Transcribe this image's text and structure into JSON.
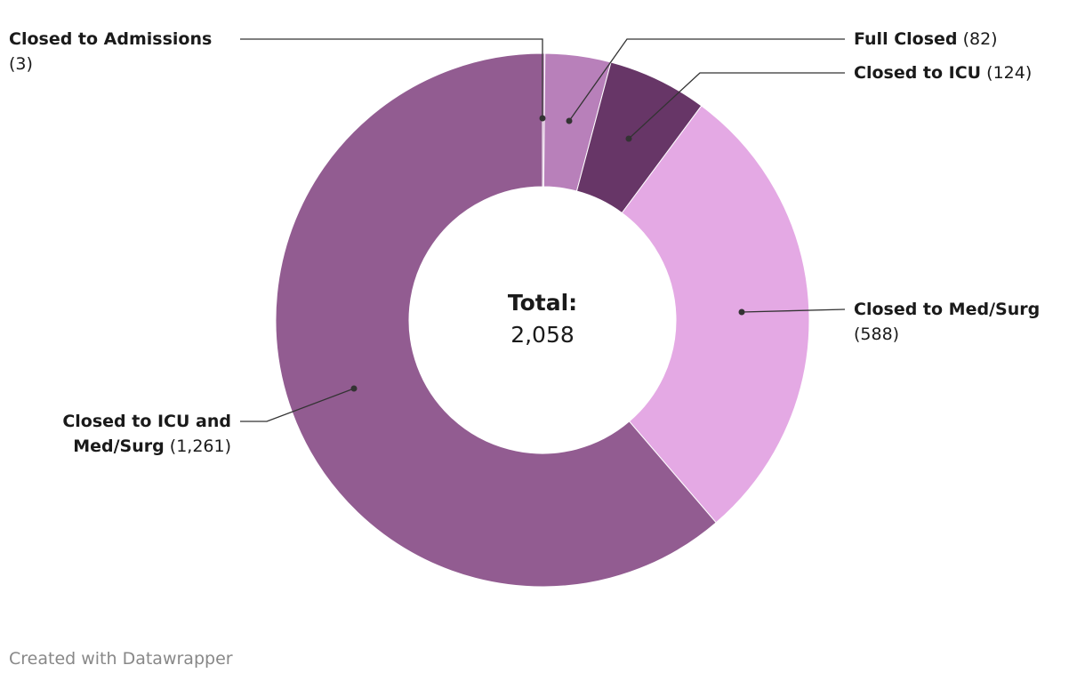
{
  "chart_data": {
    "type": "donut",
    "categories": [
      "Closed to Admissions",
      "Full Closed",
      "Closed to ICU",
      "Closed to Med/Surg",
      "Closed to ICU and Med/Surg"
    ],
    "values": [
      3,
      82,
      124,
      588,
      1261
    ],
    "value_labels": [
      "(3)",
      "(82)",
      "(124)",
      "(588)",
      "(1,261)"
    ],
    "colors": [
      "#c79ac6",
      "#b880ba",
      "#673667",
      "#e4a9e4",
      "#925c91"
    ],
    "center_title": "Total:",
    "total": {
      "value": 2058,
      "label": "2,058"
    },
    "credit": "Created with Datawrapper"
  }
}
